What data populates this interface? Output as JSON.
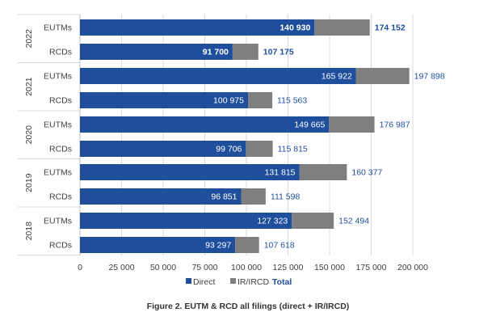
{
  "chart_data": {
    "type": "bar",
    "orientation": "horizontal",
    "stacked": true,
    "groups": [
      {
        "year": "2022",
        "rows": [
          {
            "label": "EUTMs",
            "direct": 140930,
            "ir": 33222,
            "total": 174152,
            "direct_label": "140 930",
            "total_label": "174 152"
          },
          {
            "label": "RCDs",
            "direct": 91700,
            "ir": 15475,
            "total": 107175,
            "direct_label": "91 700",
            "total_label": "107 175"
          }
        ]
      },
      {
        "year": "2021",
        "rows": [
          {
            "label": "EUTMs",
            "direct": 165922,
            "ir": 31976,
            "total": 197898,
            "direct_label": "165 922",
            "total_label": "197 898"
          },
          {
            "label": "RCDs",
            "direct": 100975,
            "ir": 14588,
            "total": 115563,
            "direct_label": "100 975",
            "total_label": "115 563"
          }
        ]
      },
      {
        "year": "2020",
        "rows": [
          {
            "label": "EUTMs",
            "direct": 149665,
            "ir": 27322,
            "total": 176987,
            "direct_label": "149 665",
            "total_label": "176 987"
          },
          {
            "label": "RCDs",
            "direct": 99706,
            "ir": 16109,
            "total": 115815,
            "direct_label": "99 706",
            "total_label": "115 815"
          }
        ]
      },
      {
        "year": "2019",
        "rows": [
          {
            "label": "EUTMs",
            "direct": 131815,
            "ir": 28562,
            "total": 160377,
            "direct_label": "131 815",
            "total_label": "160 377"
          },
          {
            "label": "RCDs",
            "direct": 96851,
            "ir": 14747,
            "total": 111598,
            "direct_label": "96 851",
            "total_label": "111 598"
          }
        ]
      },
      {
        "year": "2018",
        "rows": [
          {
            "label": "EUTMs",
            "direct": 127323,
            "ir": 25171,
            "total": 152494,
            "direct_label": "127 323",
            "total_label": "152 494"
          },
          {
            "label": "RCDs",
            "direct": 93297,
            "ir": 14321,
            "total": 107618,
            "direct_label": "93 297",
            "total_label": "107 618"
          }
        ]
      }
    ],
    "series": [
      {
        "name": "Direct",
        "color": "#1f4e9c"
      },
      {
        "name": "IR/IRCD",
        "color": "#7f7f7f"
      }
    ],
    "total_legend": {
      "name": "Total",
      "color": "#1f4e9c"
    },
    "xlim": [
      0,
      200000
    ],
    "xticks": [
      0,
      25000,
      50000,
      75000,
      100000,
      125000,
      150000,
      175000,
      200000
    ],
    "xtick_labels": [
      "0",
      "25 000",
      "50 000",
      "75 000",
      "100 000",
      "125 000",
      "150 000",
      "175 000",
      "200 000"
    ],
    "grid": "vertical",
    "legend_position": "bottom",
    "bold_group": "2022",
    "caption": "Figure 2. EUTM & RCD all filings (direct + IR/IRCD)"
  }
}
